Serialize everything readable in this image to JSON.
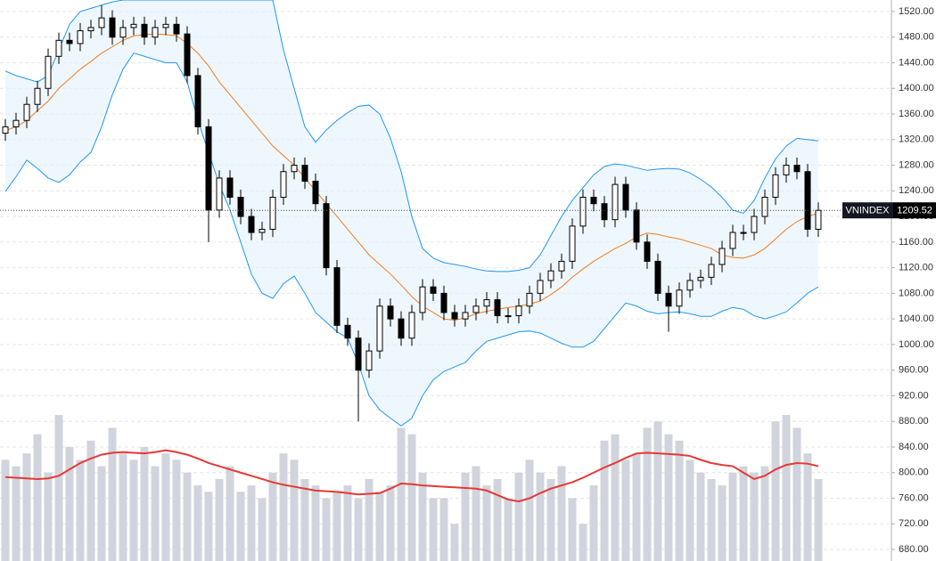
{
  "chart_data": {
    "type": "candlestick",
    "ylim": [
      662,
      1538
    ],
    "yticks": [
      {
        "value": 680,
        "label": "680.00"
      },
      {
        "value": 720,
        "label": "720.00"
      },
      {
        "value": 760,
        "label": "760.00"
      },
      {
        "value": 800,
        "label": "800.00"
      },
      {
        "value": 840,
        "label": "840.00"
      },
      {
        "value": 880,
        "label": "880.00"
      },
      {
        "value": 920,
        "label": "920.00"
      },
      {
        "value": 960,
        "label": "960.00"
      },
      {
        "value": 1000,
        "label": "1000.00"
      },
      {
        "value": 1040,
        "label": "1040.00"
      },
      {
        "value": 1080,
        "label": "1080.00"
      },
      {
        "value": 1120,
        "label": "1120.00"
      },
      {
        "value": 1160,
        "label": "1160.00"
      },
      {
        "value": 1200,
        "label": "1200.00"
      },
      {
        "value": 1240,
        "label": "1240.00"
      },
      {
        "value": 1280,
        "label": "1280.00"
      },
      {
        "value": 1320,
        "label": "1320.00"
      },
      {
        "value": 1360,
        "label": "1360.00"
      },
      {
        "value": 1400,
        "label": "1400.00"
      },
      {
        "value": 1440,
        "label": "1440.00"
      },
      {
        "value": 1480,
        "label": "1480.00"
      },
      {
        "value": 1520,
        "label": "1520.00"
      }
    ],
    "grid": true,
    "colors": {
      "up": "#ffffff",
      "down": "#000000",
      "outline": "#000000",
      "band": "#2196f3",
      "band_fill": "#e3f2fd",
      "ma": "#f57c20",
      "volume": "#d1d4dc",
      "volume_ma": "#e53935"
    },
    "open": [
      1330,
      1340,
      1350,
      1375,
      1400,
      1450,
      1475,
      1470,
      1490,
      1495,
      1510,
      1480,
      1495,
      1500,
      1480,
      1495,
      1500,
      1485,
      1420,
      1340,
      1210,
      1260,
      1230,
      1200,
      1175,
      1180,
      1230,
      1270,
      1280,
      1255,
      1220,
      1120,
      1030,
      1010,
      960,
      990,
      1060,
      1040,
      1010,
      1050,
      1090,
      1080,
      1050,
      1040,
      1050,
      1060,
      1070,
      1045,
      1045,
      1060,
      1080,
      1100,
      1115,
      1130,
      1185,
      1230,
      1220,
      1195,
      1250,
      1210,
      1160,
      1130,
      1080,
      1060,
      1085,
      1100,
      1105,
      1125,
      1150,
      1175,
      1175,
      1200,
      1230,
      1265,
      1280,
      1270,
      1180
    ],
    "high": [
      1352,
      1362,
      1387,
      1412,
      1462,
      1487,
      1487,
      1502,
      1507,
      1530,
      1522,
      1507,
      1512,
      1512,
      1507,
      1512,
      1512,
      1497,
      1432,
      1352,
      1272,
      1272,
      1242,
      1212,
      1192,
      1242,
      1282,
      1292,
      1292,
      1267,
      1232,
      1132,
      1042,
      1022,
      1002,
      1072,
      1072,
      1052,
      1062,
      1102,
      1102,
      1092,
      1062,
      1062,
      1072,
      1082,
      1082,
      1057,
      1072,
      1092,
      1112,
      1127,
      1142,
      1197,
      1242,
      1242,
      1232,
      1262,
      1262,
      1222,
      1172,
      1142,
      1092,
      1097,
      1112,
      1117,
      1137,
      1162,
      1187,
      1187,
      1212,
      1242,
      1277,
      1292,
      1292,
      1282,
      1222
    ],
    "low": [
      1318,
      1328,
      1338,
      1363,
      1388,
      1438,
      1458,
      1458,
      1478,
      1483,
      1468,
      1468,
      1483,
      1468,
      1468,
      1483,
      1473,
      1408,
      1328,
      1160,
      1198,
      1218,
      1188,
      1163,
      1163,
      1168,
      1218,
      1258,
      1243,
      1208,
      1108,
      1018,
      998,
      880,
      948,
      978,
      1028,
      998,
      998,
      1038,
      1068,
      1038,
      1028,
      1028,
      1038,
      1048,
      1033,
      1033,
      1033,
      1048,
      1068,
      1088,
      1103,
      1118,
      1173,
      1208,
      1183,
      1183,
      1198,
      1148,
      1118,
      1068,
      1020,
      1048,
      1073,
      1088,
      1093,
      1113,
      1138,
      1163,
      1163,
      1188,
      1218,
      1253,
      1258,
      1168,
      1168
    ],
    "close": [
      1340,
      1350,
      1375,
      1400,
      1450,
      1475,
      1470,
      1490,
      1495,
      1510,
      1480,
      1495,
      1500,
      1480,
      1495,
      1500,
      1485,
      1420,
      1340,
      1210,
      1260,
      1230,
      1200,
      1175,
      1180,
      1230,
      1270,
      1280,
      1255,
      1220,
      1120,
      1030,
      1010,
      960,
      990,
      1060,
      1040,
      1010,
      1050,
      1090,
      1080,
      1050,
      1040,
      1050,
      1060,
      1070,
      1045,
      1045,
      1060,
      1080,
      1100,
      1115,
      1130,
      1185,
      1230,
      1220,
      1195,
      1250,
      1210,
      1160,
      1130,
      1080,
      1060,
      1085,
      1100,
      1105,
      1125,
      1150,
      1175,
      1175,
      1200,
      1230,
      1265,
      1280,
      1270,
      1180,
      1209.52
    ],
    "upper": [
      1427,
      1420,
      1415,
      1410,
      1420,
      1460,
      1500,
      1520,
      1525,
      1530,
      1535,
      1538,
      1538,
      1538,
      1538,
      1538,
      1538,
      1538,
      1538,
      1538,
      1538,
      1538,
      1538,
      1538,
      1538,
      1538,
      1460,
      1400,
      1340,
      1316,
      1335,
      1350,
      1362,
      1372,
      1374,
      1360,
      1322,
      1270,
      1200,
      1150,
      1135,
      1128,
      1125,
      1122,
      1118,
      1115,
      1114,
      1114,
      1116,
      1120,
      1140,
      1170,
      1200,
      1225,
      1245,
      1265,
      1278,
      1282,
      1280,
      1276,
      1272,
      1274,
      1275,
      1274,
      1268,
      1258,
      1246,
      1230,
      1210,
      1205,
      1225,
      1260,
      1290,
      1310,
      1322,
      1320,
      1318
    ],
    "ma": [
      1334,
      1340,
      1350,
      1365,
      1380,
      1400,
      1415,
      1430,
      1442,
      1455,
      1465,
      1475,
      1482,
      1484,
      1485,
      1484,
      1482,
      1470,
      1455,
      1435,
      1410,
      1390,
      1370,
      1350,
      1330,
      1310,
      1295,
      1280,
      1260,
      1240,
      1220,
      1200,
      1180,
      1160,
      1140,
      1125,
      1110,
      1093,
      1075,
      1060,
      1050,
      1040,
      1038,
      1042,
      1048,
      1052,
      1055,
      1058,
      1060,
      1063,
      1068,
      1078,
      1090,
      1105,
      1118,
      1130,
      1140,
      1150,
      1158,
      1168,
      1174,
      1172,
      1168,
      1165,
      1160,
      1155,
      1150,
      1140,
      1136,
      1135,
      1140,
      1150,
      1165,
      1180,
      1192,
      1200,
      1205
    ],
    "lower": [
      1239,
      1262,
      1288,
      1275,
      1260,
      1253,
      1265,
      1285,
      1300,
      1340,
      1390,
      1430,
      1455,
      1450,
      1445,
      1440,
      1440,
      1410,
      1350,
      1300,
      1250,
      1210,
      1160,
      1110,
      1080,
      1072,
      1095,
      1107,
      1080,
      1050,
      1035,
      1020,
      1010,
      970,
      920,
      898,
      885,
      873,
      885,
      920,
      945,
      958,
      965,
      972,
      990,
      1005,
      1010,
      1015,
      1020,
      1021,
      1018,
      1010,
      1002,
      996,
      996,
      1005,
      1025,
      1045,
      1065,
      1060,
      1052,
      1048,
      1050,
      1051,
      1048,
      1044,
      1044,
      1052,
      1058,
      1055,
      1045,
      1040,
      1045,
      1051,
      1065,
      1080,
      1090
    ],
    "volume": [
      820,
      810,
      830,
      860,
      800,
      890,
      840,
      820,
      850,
      810,
      870,
      830,
      820,
      840,
      810,
      830,
      820,
      800,
      780,
      770,
      790,
      810,
      770,
      780,
      760,
      800,
      830,
      820,
      790,
      780,
      760,
      770,
      780,
      760,
      790,
      770,
      780,
      870,
      860,
      800,
      760,
      760,
      720,
      800,
      810,
      780,
      790,
      760,
      800,
      820,
      800,
      790,
      810,
      760,
      720,
      780,
      850,
      860,
      820,
      830,
      870,
      880,
      860,
      850,
      820,
      800,
      790,
      780,
      800,
      810,
      800,
      810,
      880,
      890,
      870,
      830,
      790
    ],
    "volume_ma": [
      793,
      792,
      791,
      790,
      791,
      795,
      805,
      815,
      822,
      828,
      831,
      832,
      831,
      830,
      832,
      835,
      832,
      828,
      822,
      815,
      810,
      805,
      800,
      795,
      790,
      785,
      781,
      778,
      775,
      772,
      771,
      770,
      768,
      766,
      767,
      768,
      775,
      783,
      782,
      780,
      779,
      778,
      777,
      776,
      775,
      772,
      765,
      758,
      755,
      760,
      768,
      775,
      780,
      785,
      792,
      800,
      808,
      815,
      823,
      830,
      831,
      830,
      829,
      828,
      826,
      820,
      815,
      812,
      810,
      800,
      790,
      795,
      805,
      812,
      815,
      814,
      810
    ],
    "last_price": {
      "label": "VNINDEX",
      "value": 1209.52
    }
  }
}
